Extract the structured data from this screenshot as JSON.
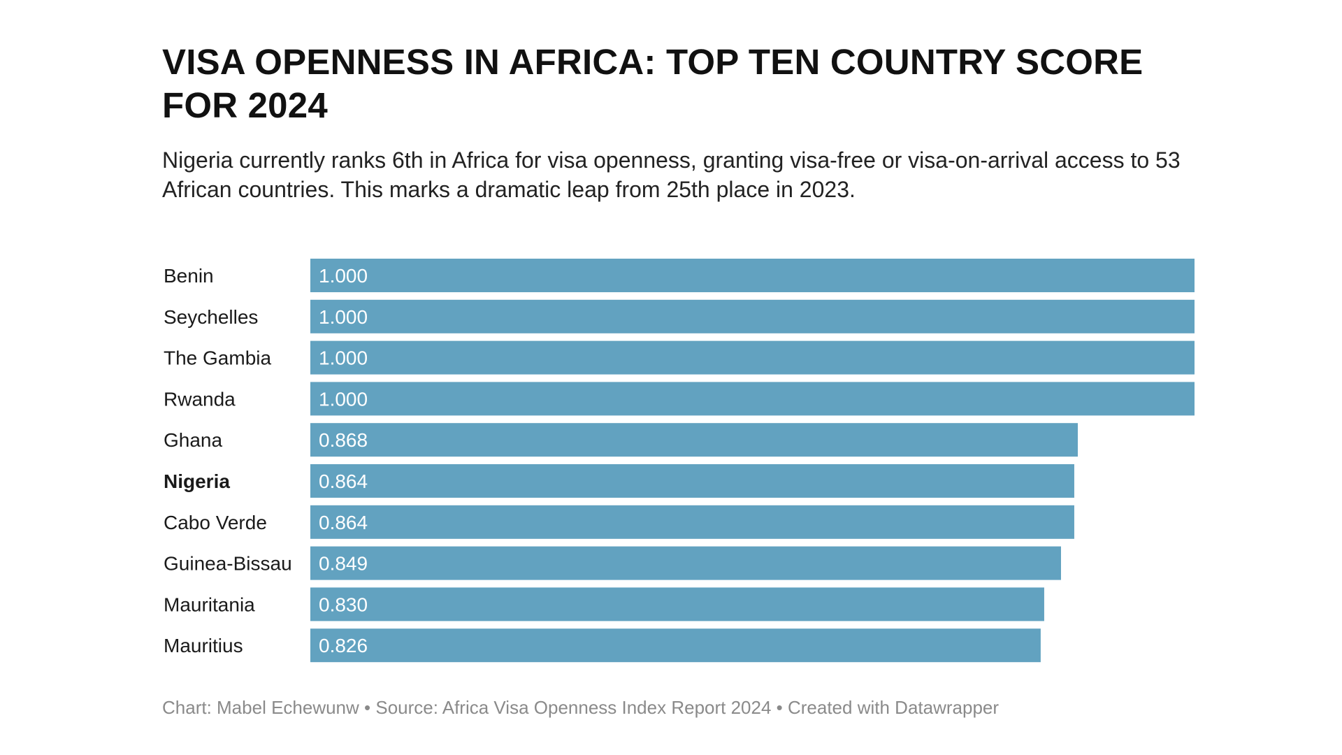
{
  "colors": {
    "bar": "#62a2c0",
    "value_label": "#ffffff",
    "footer_text": "#8a8a8a"
  },
  "chart_data": {
    "type": "bar",
    "orientation": "horizontal",
    "title": "VISA OPENNESS IN AFRICA: TOP TEN COUNTRY SCORE FOR 2024",
    "subtitle": "Nigeria currently ranks 6th in Africa for visa openness, granting visa-free or visa-on-arrival access to 53 African countries. This marks a dramatic leap from 25th place in 2023.",
    "categories": [
      "Benin",
      "Seychelles",
      "The Gambia",
      "Rwanda",
      "Ghana",
      "Nigeria",
      "Cabo Verde",
      "Guinea-Bissau",
      "Mauritania",
      "Mauritius"
    ],
    "values": [
      1.0,
      1.0,
      1.0,
      1.0,
      0.868,
      0.864,
      0.864,
      0.849,
      0.83,
      0.826
    ],
    "value_labels": [
      "1.000",
      "1.000",
      "1.000",
      "1.000",
      "0.868",
      "0.864",
      "0.864",
      "0.849",
      "0.830",
      "0.826"
    ],
    "highlighted_category": "Nigeria",
    "xlim": [
      0,
      1
    ],
    "grid": false,
    "legend": "none",
    "footer": "Chart: Mabel Echewunw • Source: Africa Visa Openness Index Report 2024 • Created with Datawrapper"
  }
}
